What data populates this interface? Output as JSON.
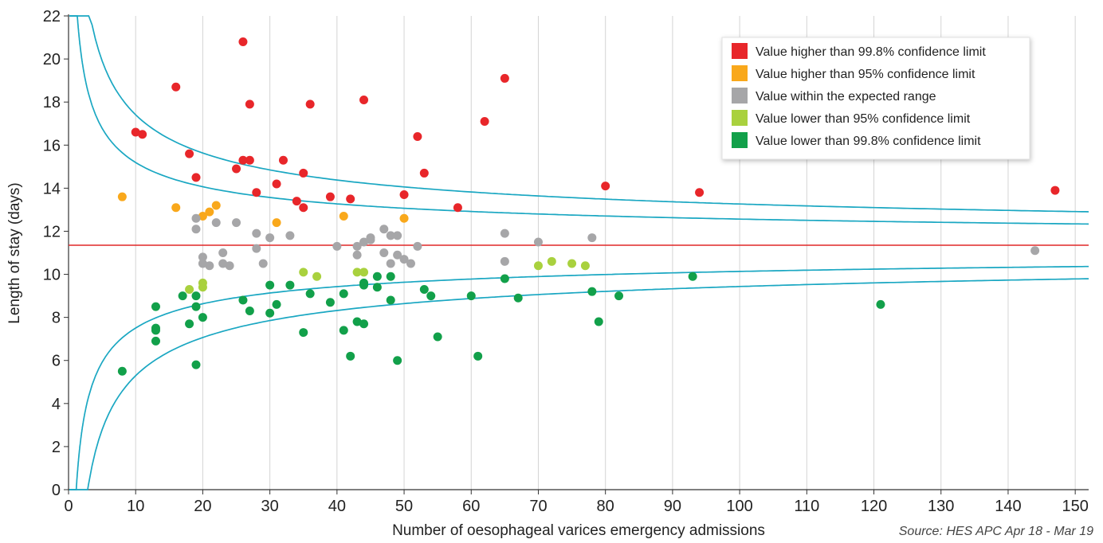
{
  "chart_data": {
    "type": "scatter",
    "xlabel": "Number of oesophageal varices emergency admissions",
    "ylabel": "Length of stay (days)",
    "source": "Source: HES APC Apr 18 - Mar 19",
    "xlim": [
      0,
      152
    ],
    "ylim": [
      0,
      22
    ],
    "x_ticks": [
      0,
      10,
      20,
      30,
      40,
      50,
      60,
      70,
      80,
      90,
      100,
      110,
      120,
      130,
      140,
      150
    ],
    "y_ticks": [
      0,
      2,
      4,
      6,
      8,
      10,
      12,
      14,
      16,
      18,
      20,
      22
    ],
    "grid": "vertical",
    "legend_position": "top-right",
    "mean_line": {
      "value": 11.35,
      "color": "#e02828"
    },
    "control_limits": {
      "mean": 11.35,
      "k": 6.2,
      "z95": 1.96,
      "z998": 3.09,
      "color": "#1aa7c2"
    },
    "series": [
      {
        "name": "Value higher than 99.8% confidence limit",
        "color": "#e8262a",
        "points": [
          [
            10,
            16.6
          ],
          [
            11,
            16.5
          ],
          [
            16,
            18.7
          ],
          [
            18,
            15.6
          ],
          [
            19,
            14.5
          ],
          [
            25,
            14.9
          ],
          [
            26,
            20.8
          ],
          [
            26,
            15.3
          ],
          [
            27,
            17.9
          ],
          [
            27,
            15.3
          ],
          [
            28,
            13.8
          ],
          [
            31,
            14.2
          ],
          [
            32,
            15.3
          ],
          [
            34,
            13.4
          ],
          [
            35,
            14.7
          ],
          [
            35,
            13.1
          ],
          [
            36,
            17.9
          ],
          [
            39,
            13.6
          ],
          [
            42,
            13.5
          ],
          [
            44,
            18.1
          ],
          [
            50,
            13.7
          ],
          [
            52,
            16.4
          ],
          [
            53,
            14.7
          ],
          [
            58,
            13.1
          ],
          [
            62,
            17.1
          ],
          [
            65,
            19.1
          ],
          [
            80,
            14.1
          ],
          [
            94,
            13.8
          ],
          [
            147,
            13.9
          ]
        ]
      },
      {
        "name": "Value higher than 95% confidence limit",
        "color": "#f9a81b",
        "points": [
          [
            8,
            13.6
          ],
          [
            16,
            13.1
          ],
          [
            20,
            12.7
          ],
          [
            21,
            12.9
          ],
          [
            22,
            13.2
          ],
          [
            31,
            12.4
          ],
          [
            41,
            12.7
          ],
          [
            50,
            12.6
          ]
        ]
      },
      {
        "name": "Value within the expected range",
        "color": "#a6a6a8",
        "points": [
          [
            19,
            12.6
          ],
          [
            19,
            12.1
          ],
          [
            20,
            10.8
          ],
          [
            20,
            10.5
          ],
          [
            21,
            10.4
          ],
          [
            22,
            12.4
          ],
          [
            23,
            11.0
          ],
          [
            23,
            10.5
          ],
          [
            24,
            10.4
          ],
          [
            25,
            12.4
          ],
          [
            28,
            11.9
          ],
          [
            28,
            11.2
          ],
          [
            29,
            10.5
          ],
          [
            30,
            11.7
          ],
          [
            33,
            11.8
          ],
          [
            40,
            11.3
          ],
          [
            43,
            11.3
          ],
          [
            43,
            10.9
          ],
          [
            44,
            11.5
          ],
          [
            45,
            11.7
          ],
          [
            45,
            11.6
          ],
          [
            47,
            12.1
          ],
          [
            47,
            11.0
          ],
          [
            48,
            11.8
          ],
          [
            48,
            10.5
          ],
          [
            49,
            11.8
          ],
          [
            49,
            10.9
          ],
          [
            50,
            10.7
          ],
          [
            51,
            10.5
          ],
          [
            52,
            11.3
          ],
          [
            65,
            11.9
          ],
          [
            65,
            10.6
          ],
          [
            70,
            11.5
          ],
          [
            78,
            11.7
          ],
          [
            144,
            11.1
          ]
        ]
      },
      {
        "name": "Value lower than 95% confidence limit",
        "color": "#a9d13e",
        "points": [
          [
            18,
            9.3
          ],
          [
            20,
            9.6
          ],
          [
            20,
            9.4
          ],
          [
            35,
            10.1
          ],
          [
            37,
            9.9
          ],
          [
            43,
            10.1
          ],
          [
            44,
            10.1
          ],
          [
            70,
            10.4
          ],
          [
            72,
            10.6
          ],
          [
            75,
            10.5
          ],
          [
            77,
            10.4
          ]
        ]
      },
      {
        "name": "Value lower than 99.8% confidence limit",
        "color": "#12a04a",
        "points": [
          [
            8,
            5.5
          ],
          [
            13,
            8.5
          ],
          [
            13,
            7.5
          ],
          [
            13,
            7.4
          ],
          [
            13,
            6.9
          ],
          [
            17,
            9.0
          ],
          [
            18,
            7.7
          ],
          [
            19,
            9.0
          ],
          [
            19,
            8.5
          ],
          [
            19,
            5.8
          ],
          [
            20,
            8.0
          ],
          [
            26,
            8.8
          ],
          [
            27,
            8.3
          ],
          [
            30,
            9.5
          ],
          [
            30,
            8.2
          ],
          [
            31,
            8.6
          ],
          [
            33,
            9.5
          ],
          [
            35,
            7.3
          ],
          [
            36,
            9.1
          ],
          [
            39,
            8.7
          ],
          [
            41,
            9.1
          ],
          [
            41,
            7.4
          ],
          [
            42,
            6.2
          ],
          [
            43,
            7.8
          ],
          [
            44,
            9.6
          ],
          [
            44,
            9.5
          ],
          [
            44,
            7.7
          ],
          [
            46,
            9.9
          ],
          [
            46,
            9.4
          ],
          [
            48,
            9.9
          ],
          [
            48,
            8.8
          ],
          [
            49,
            6.0
          ],
          [
            53,
            9.3
          ],
          [
            54,
            9.0
          ],
          [
            55,
            7.1
          ],
          [
            60,
            9.0
          ],
          [
            61,
            6.2
          ],
          [
            65,
            9.8
          ],
          [
            67,
            8.9
          ],
          [
            78,
            9.2
          ],
          [
            79,
            7.8
          ],
          [
            82,
            9.0
          ],
          [
            93,
            9.9
          ],
          [
            121,
            8.6
          ]
        ]
      }
    ]
  }
}
